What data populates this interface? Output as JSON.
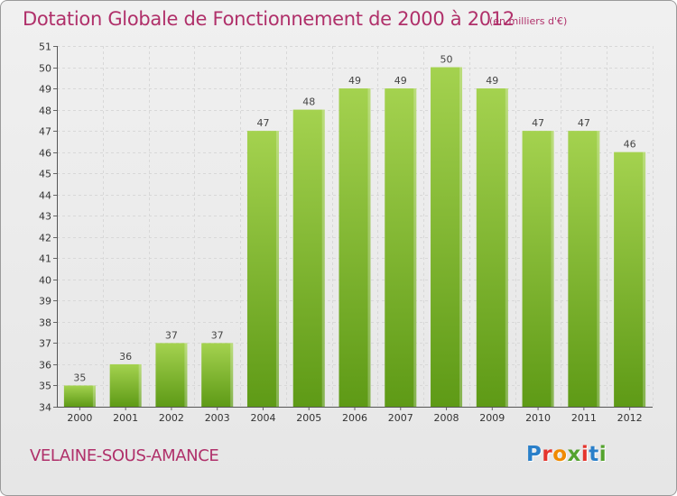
{
  "title": "Dotation Globale de Fonctionnement de 2000 à 2012",
  "subtitle": "(en milliers d'€)",
  "commune": "VELAINE-SOUS-AMANCE",
  "logo": {
    "text": "Proxiti",
    "letters": [
      "P",
      "r",
      "o",
      "x",
      "i",
      "t",
      "i"
    ],
    "colors": [
      "#2a7fc9",
      "#e5352d",
      "#f08a00",
      "#54a32e",
      "#e5352d",
      "#2a7fc9",
      "#54a32e"
    ]
  },
  "colors": {
    "bar_top": "#a4d24f",
    "bar_bottom": "#5e9a16",
    "text_accent": "#b0306a"
  },
  "chart_data": {
    "type": "bar",
    "categories": [
      "2000",
      "2001",
      "2002",
      "2003",
      "2004",
      "2005",
      "2006",
      "2007",
      "2008",
      "2009",
      "2010",
      "2011",
      "2012"
    ],
    "values": [
      35,
      36,
      37,
      37,
      47,
      48,
      49,
      49,
      50,
      49,
      47,
      47,
      46
    ],
    "ylim": [
      34,
      51
    ],
    "yticks": [
      34,
      35,
      36,
      37,
      38,
      39,
      40,
      41,
      42,
      43,
      44,
      45,
      46,
      47,
      48,
      49,
      50,
      51
    ],
    "title": "Dotation Globale de Fonctionnement de 2000 à 2012",
    "xlabel": "",
    "ylabel": "",
    "grid": true
  }
}
